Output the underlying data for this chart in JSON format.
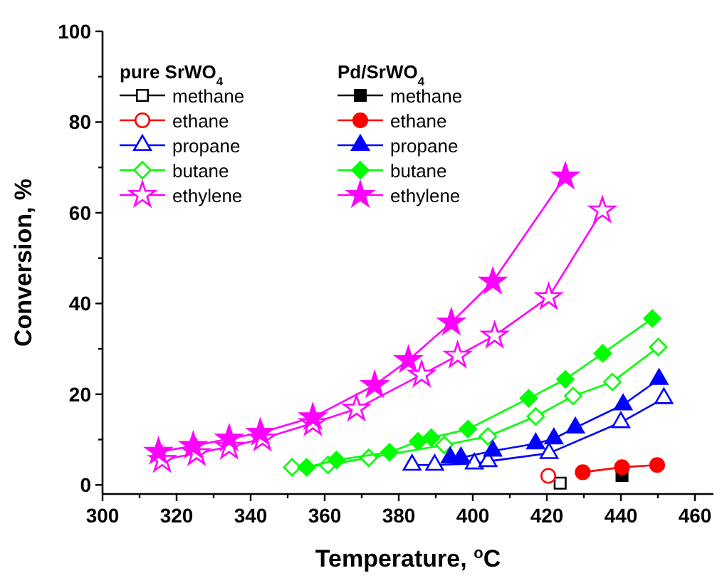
{
  "chart_data": {
    "type": "line",
    "xlabel": "Temperature, $^{o}$C",
    "ylabel": "Conversion, %",
    "annotations": [
      "pure SrWO$_{4}$",
      "Pd/SrWO$_{4}$"
    ],
    "xlim": [
      300,
      465
    ],
    "ylim": [
      -2,
      100
    ],
    "xticks": [
      300,
      {
        "value": 310,
        "label": null
      },
      320,
      {
        "value": 330,
        "label": null
      },
      340,
      {
        "value": 350,
        "label": null
      },
      360,
      {
        "value": 370,
        "label": null
      },
      380,
      {
        "value": 390,
        "label": null
      },
      400,
      {
        "value": 410,
        "label": null
      },
      420,
      {
        "value": 430,
        "label": null
      },
      440,
      {
        "value": 450,
        "label": null
      },
      460
    ],
    "yticks": [
      0,
      {
        "value": 10,
        "label": null
      },
      20,
      {
        "value": 30,
        "label": null
      },
      40,
      {
        "value": 50,
        "label": null
      },
      60,
      {
        "value": 70,
        "label": null
      },
      80,
      {
        "value": 90,
        "label": null
      },
      100
    ],
    "grid": false,
    "legend": "top left",
    "line_style": "solid",
    "series": [
      {
        "name": "methane",
        "color": "#000000",
        "marker": "square",
        "x": [
          423.6
        ],
        "values": [
          0.4
        ]
      },
      {
        "name": "ethane",
        "color": "#ff0000",
        "marker": "circle",
        "x": [
          420.4
        ],
        "values": [
          2.0
        ]
      },
      {
        "name": "propane",
        "color": "#0000ff",
        "marker": "triangle",
        "x": [
          383.6,
          389.7,
          400.4,
          404.1,
          420.6,
          440.0,
          451.6
        ],
        "values": [
          4.4,
          4.4,
          4.7,
          5.2,
          7.0,
          13.8,
          19.1
        ]
      },
      {
        "name": "butane",
        "color": "#00ff00",
        "marker": "diamond",
        "x": [
          351.2,
          360.9,
          371.9,
          392.3,
          404.1,
          417.0,
          427.1,
          437.7,
          450.1
        ],
        "values": [
          3.9,
          4.4,
          6.0,
          8.8,
          10.7,
          15.1,
          19.6,
          22.7,
          30.4
        ]
      },
      {
        "name": "ethylene",
        "color": "#ff00ff",
        "marker": "star",
        "x": [
          316.1,
          325.4,
          334.2,
          343.2,
          356.8,
          368.6,
          386.2,
          395.9,
          405.9,
          420.5,
          435.0
        ],
        "values": [
          5.5,
          7.0,
          8.4,
          10.2,
          13.6,
          16.8,
          24.3,
          28.5,
          32.9,
          41.4,
          60.5
        ]
      },
      {
        "name": "methane",
        "color": "#000000",
        "marker": "square",
        "x": [
          440.3
        ],
        "values": [
          2.1
        ]
      },
      {
        "name": "ethane",
        "color": "#ff0000",
        "marker": "circle",
        "x": [
          429.7,
          440.3,
          449.8
        ],
        "values": [
          2.8,
          3.9,
          4.4
        ]
      },
      {
        "name": "propane",
        "color": "#0000ff",
        "marker": "triangle",
        "x": [
          393.9,
          396.8,
          405.4,
          417.0,
          421.9,
          427.7,
          440.6,
          450.3
        ],
        "values": [
          6.0,
          6.0,
          7.5,
          9.1,
          10.2,
          12.6,
          17.7,
          23.3
        ]
      },
      {
        "name": "butane",
        "color": "#00ff00",
        "marker": "diamond",
        "x": [
          355.1,
          363.2,
          377.5,
          385.2,
          388.8,
          398.7,
          415.1,
          425.0,
          435.1,
          448.5
        ],
        "values": [
          3.9,
          5.5,
          7.2,
          9.6,
          10.4,
          12.3,
          19.1,
          23.3,
          29.0,
          36.7
        ]
      },
      {
        "name": "ethylene",
        "color": "#ff00ff",
        "marker": "star",
        "x": [
          315.1,
          324.5,
          334.2,
          342.6,
          356.8,
          373.5,
          382.6,
          394.2,
          405.4,
          425.0
        ],
        "values": [
          7.3,
          8.6,
          10.2,
          11.5,
          14.9,
          22.0,
          27.5,
          35.8,
          44.8,
          68.0
        ]
      }
    ]
  }
}
